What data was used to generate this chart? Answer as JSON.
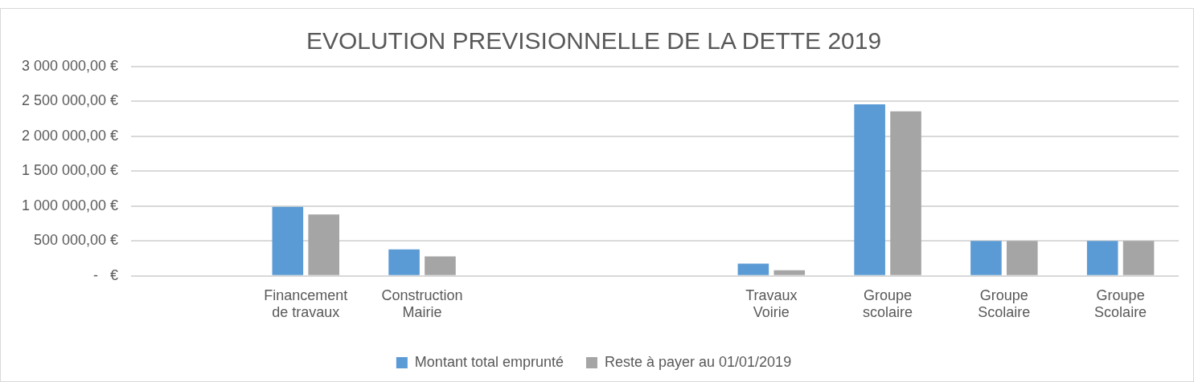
{
  "chart_data": {
    "type": "bar",
    "title": "EVOLUTION PREVISIONNELLE DE LA DETTE 2019",
    "categories": [
      null,
      "Financement de travaux",
      "Construction Mairie",
      null,
      null,
      "Travaux Voirie",
      "Groupe scolaire",
      "Groupe Scolaire",
      "Groupe Scolaire"
    ],
    "series": [
      {
        "name": "Montant total emprunté",
        "color": "#5b9bd5",
        "values": [
          null,
          990000,
          380000,
          null,
          null,
          175000,
          2460000,
          500000,
          500000
        ]
      },
      {
        "name": "Reste à payer au 01/01/2019",
        "color": "#a5a5a5",
        "values": [
          null,
          880000,
          280000,
          null,
          null,
          80000,
          2360000,
          500000,
          500000
        ]
      }
    ],
    "ylim": [
      0,
      3000000
    ],
    "yticks": [
      {
        "value": 0,
        "label": "-   €"
      },
      {
        "value": 500000,
        "label": "500 000,00 €"
      },
      {
        "value": 1000000,
        "label": "1 000 000,00 €"
      },
      {
        "value": 1500000,
        "label": "1 500 000,00 €"
      },
      {
        "value": 2000000,
        "label": "2 000 000,00 €"
      },
      {
        "value": 2500000,
        "label": "2 500 000,00 €"
      },
      {
        "value": 3000000,
        "label": "3 000 000,00 €"
      }
    ],
    "grid": "y",
    "legend": "bottom"
  }
}
